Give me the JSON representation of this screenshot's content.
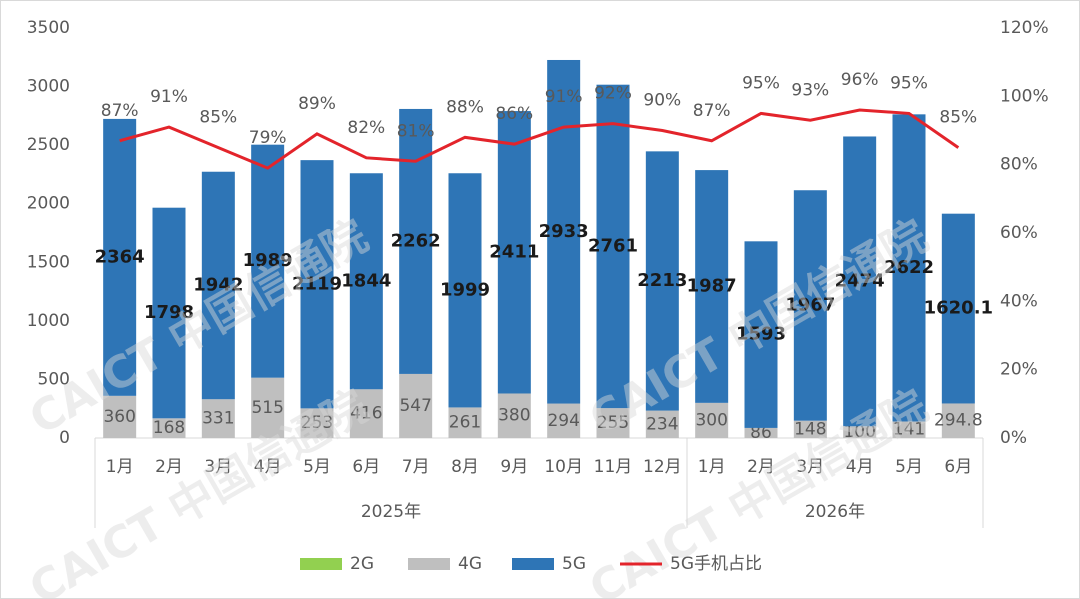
{
  "chart_data": {
    "type": "bar",
    "groups": [
      {
        "name": "2025年",
        "categories": [
          "1月",
          "2月",
          "3月",
          "4月",
          "5月",
          "6月",
          "7月",
          "8月",
          "9月",
          "10月",
          "11月",
          "12月"
        ]
      },
      {
        "name": "2026年",
        "categories": [
          "1月",
          "2月",
          "3月",
          "4月",
          "5月",
          "6月"
        ]
      }
    ],
    "series": [
      {
        "name": "2G",
        "color": "#92d050",
        "values": [
          0,
          0,
          0,
          0,
          0,
          0,
          0,
          0,
          0,
          0,
          0,
          0,
          0,
          0,
          0,
          0,
          0,
          0
        ]
      },
      {
        "name": "4G",
        "color": "#bfbfbf",
        "values": [
          360,
          168,
          331,
          515,
          253,
          416,
          547,
          261,
          380,
          294,
          255,
          234,
          300,
          86,
          148,
          100,
          141,
          294.8
        ]
      },
      {
        "name": "5G",
        "color": "#2e75b6",
        "values": [
          2364,
          1798,
          1942,
          1989,
          2119,
          1844,
          2262,
          1999,
          2411,
          2933,
          2761,
          2213,
          1987,
          1593,
          1967,
          2474,
          2622,
          1620.1
        ]
      },
      {
        "name": "5G手机占比",
        "type": "line",
        "axis": "y2",
        "color": "#e3242b",
        "values": [
          87,
          91,
          85,
          79,
          89,
          82,
          81,
          88,
          86,
          91,
          92,
          90,
          87,
          95,
          93,
          96,
          95,
          85
        ],
        "value_labels": [
          "87%",
          "91%",
          "85%",
          "79%",
          "89%",
          "82%",
          "81%",
          "88%",
          "86%",
          "91%",
          "92%",
          "90%",
          "87%",
          "95%",
          "93%",
          "96%",
          "95%",
          "85%"
        ]
      }
    ],
    "ylim": [
      0,
      3500
    ],
    "yticks": [
      0,
      500,
      1000,
      1500,
      2000,
      2500,
      3000,
      3500
    ],
    "y2lim": [
      0,
      120
    ],
    "y2ticks": [
      {
        "value": 0,
        "label": "0%"
      },
      {
        "value": 20,
        "label": "20%"
      },
      {
        "value": 40,
        "label": "40%"
      },
      {
        "value": 60,
        "label": "60%"
      },
      {
        "value": 80,
        "label": "80%"
      },
      {
        "value": 100,
        "label": "100%"
      },
      {
        "value": 120,
        "label": "120%"
      }
    ],
    "legend": "bottom",
    "watermark": "CAICT 中国信通院"
  }
}
